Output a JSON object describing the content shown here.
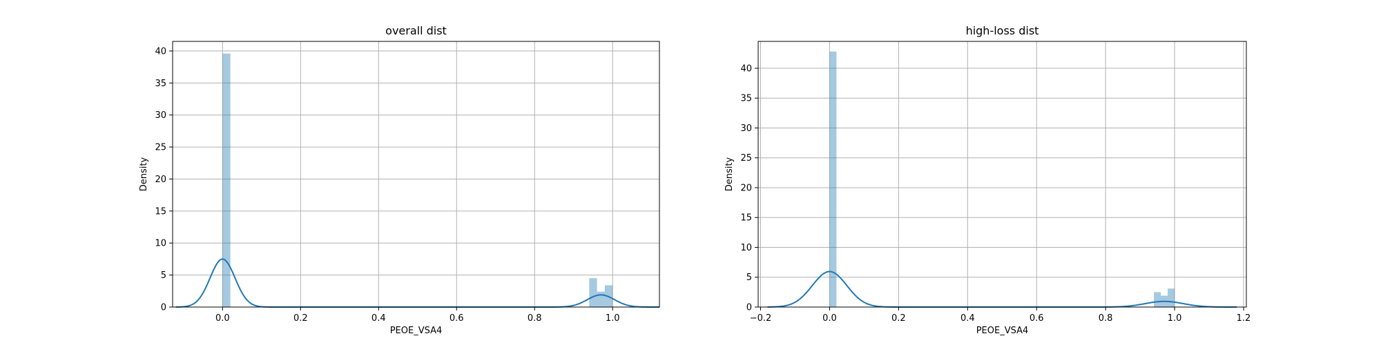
{
  "chart_data": [
    {
      "type": "bar",
      "title": "overall dist",
      "xlabel": "PEOE_VSA4",
      "ylabel": "Density",
      "xlim": [
        -0.128,
        1.12
      ],
      "ylim": [
        0,
        41.5
      ],
      "xticks": [
        0.0,
        0.2,
        0.4,
        0.6,
        0.8,
        1.0
      ],
      "xtick_labels": [
        "0.0",
        "0.2",
        "0.4",
        "0.6",
        "0.8",
        "1.0"
      ],
      "yticks": [
        0,
        5,
        10,
        15,
        20,
        25,
        30,
        35,
        40
      ],
      "ytick_labels": [
        "0",
        "5",
        "10",
        "15",
        "20",
        "25",
        "30",
        "35",
        "40"
      ],
      "grid": true,
      "histogram": {
        "bin_width": 0.02,
        "bars": [
          {
            "x0": 0.0,
            "x1": 0.02,
            "value": 39.6
          },
          {
            "x0": 0.94,
            "x1": 0.96,
            "value": 4.5
          },
          {
            "x0": 0.96,
            "x1": 0.98,
            "value": 2.4
          },
          {
            "x0": 0.98,
            "x1": 1.0,
            "value": 3.4
          }
        ]
      },
      "kde": {
        "x_range": [
          -0.12,
          1.12
        ],
        "components": [
          {
            "center": 0.0,
            "sigma": 0.032,
            "peak": 7.5
          },
          {
            "center": 0.97,
            "sigma": 0.035,
            "peak": 1.9
          }
        ]
      },
      "colors": {
        "bars": "#1f77b4",
        "bars_opacity": 0.4,
        "kde": "#1f77b4",
        "grid": "#b0b0b0"
      }
    },
    {
      "type": "bar",
      "title": "high-loss dist",
      "xlabel": "PEOE_VSA4",
      "ylabel": "Density",
      "xlim": [
        -0.207,
        1.208
      ],
      "ylim": [
        0,
        44.5
      ],
      "xticks": [
        -0.2,
        0.0,
        0.2,
        0.4,
        0.6,
        0.8,
        1.0,
        1.2
      ],
      "xtick_labels": [
        "−0.2",
        "0.0",
        "0.2",
        "0.4",
        "0.6",
        "0.8",
        "1.0",
        "1.2"
      ],
      "yticks": [
        0,
        5,
        10,
        15,
        20,
        25,
        30,
        35,
        40
      ],
      "ytick_labels": [
        "0",
        "5",
        "10",
        "15",
        "20",
        "25",
        "30",
        "35",
        "40"
      ],
      "grid": true,
      "histogram": {
        "bin_width": 0.02,
        "bars": [
          {
            "x0": 0.0,
            "x1": 0.02,
            "value": 42.8
          },
          {
            "x0": 0.94,
            "x1": 0.96,
            "value": 2.5
          },
          {
            "x0": 0.96,
            "x1": 0.98,
            "value": 1.9
          },
          {
            "x0": 0.98,
            "x1": 1.0,
            "value": 3.1
          }
        ]
      },
      "kde": {
        "x_range": [
          -0.18,
          1.18
        ],
        "components": [
          {
            "center": 0.0,
            "sigma": 0.05,
            "peak": 5.95
          },
          {
            "center": 0.97,
            "sigma": 0.055,
            "peak": 0.95
          }
        ]
      },
      "colors": {
        "bars": "#1f77b4",
        "bars_opacity": 0.4,
        "kde": "#1f77b4",
        "grid": "#b0b0b0"
      }
    }
  ]
}
